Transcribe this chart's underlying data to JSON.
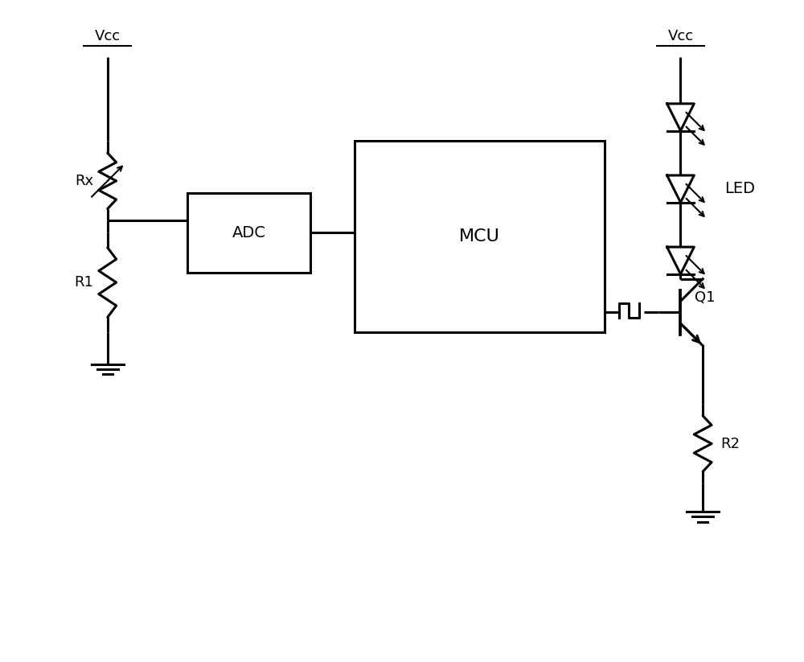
{
  "bg_color": "#ffffff",
  "line_color": "#000000",
  "line_width": 2.2,
  "fig_width": 10.0,
  "fig_height": 8.23,
  "vcc_left_label": "Vcc",
  "rx_label": "Rx",
  "r1_label": "R1",
  "adc_label": "ADC",
  "mcu_label": "MCU",
  "q1_label": "Q1",
  "r2_label": "R2",
  "led_label": "LED",
  "vcc_right_label": "Vcc"
}
